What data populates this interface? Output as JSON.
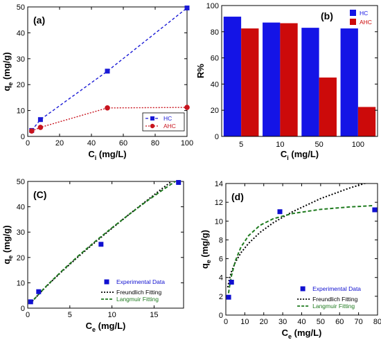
{
  "chart_data": [
    {
      "id": "a",
      "type": "line",
      "panel_label": "(a)",
      "xlabel": "C",
      "xlabel_sub": "i",
      "xlabel_unit": " (mg/L)",
      "ylabel": "q",
      "ylabel_sub": "e",
      "ylabel_unit": " (mg/g)",
      "xlim": [
        0,
        100
      ],
      "ylim": [
        0,
        50
      ],
      "xticks": [
        0,
        20,
        40,
        60,
        80,
        100
      ],
      "yticks": [
        0,
        10,
        20,
        30,
        40,
        50
      ],
      "legend_position": "bottom-right",
      "series": [
        {
          "name": "HC",
          "color": "#1a1ad6",
          "marker": "square",
          "line": "dashed",
          "x": [
            2.5,
            8,
            50,
            100
          ],
          "y": [
            2.3,
            6.5,
            25.2,
            49.6
          ]
        },
        {
          "name": "AHC",
          "color": "#c8141e",
          "marker": "circle",
          "line": "dotted",
          "x": [
            2.5,
            8,
            50,
            100
          ],
          "y": [
            2.1,
            3.5,
            11.0,
            11.2
          ]
        }
      ]
    },
    {
      "id": "b",
      "type": "bar",
      "panel_label": "(b)",
      "xlabel": "C",
      "xlabel_sub": "i",
      "xlabel_unit": " (mg/L)",
      "ylabel": "R%",
      "ylim": [
        0,
        100
      ],
      "yticks": [
        0,
        20,
        40,
        60,
        80,
        100
      ],
      "categories": [
        "5",
        "10",
        "50",
        "100"
      ],
      "legend_position": "top-right",
      "series": [
        {
          "name": "HC",
          "color": "#1414e6",
          "values": [
            91.5,
            87,
            83,
            82.5
          ]
        },
        {
          "name": "AHC",
          "color": "#cc0a0a",
          "values": [
            82.5,
            86.5,
            45,
            22.5
          ]
        }
      ]
    },
    {
      "id": "C",
      "type": "scatter",
      "panel_label": "(C)",
      "xlabel": "C",
      "xlabel_sub": "e",
      "xlabel_unit": " (mg/L)",
      "ylabel": "q",
      "ylabel_sub": "e",
      "ylabel_unit": " (mg/g)",
      "xlim": [
        0,
        18.5
      ],
      "ylim": [
        0,
        50
      ],
      "xticks": [
        0,
        5,
        10,
        15
      ],
      "yticks": [
        0,
        10,
        20,
        30,
        40,
        50
      ],
      "legend_position": "bottom-right",
      "experimental": {
        "name": "Experimental Data",
        "color": "#1010d0",
        "x": [
          0.35,
          1.3,
          8.7,
          17.9
        ],
        "y": [
          2.5,
          6.5,
          25.2,
          49.6
        ]
      },
      "fits": [
        {
          "name": "Freundlich Fitting",
          "color": "#000000",
          "style": "dotted",
          "x": [
            0.3,
            2,
            4,
            6,
            8,
            10,
            12,
            14,
            16,
            18
          ],
          "y": [
            1.9,
            7.9,
            14.3,
            20.3,
            26.0,
            31.5,
            36.9,
            42.1,
            47.3,
            52.3
          ]
        },
        {
          "name": "Langmuir Fitting",
          "color": "#1e7a1e",
          "style": "dashed",
          "x": [
            0.3,
            2,
            4,
            6,
            8,
            10,
            12,
            14,
            16,
            18
          ],
          "y": [
            1.8,
            8.0,
            14.5,
            20.6,
            26.3,
            31.7,
            36.9,
            41.9,
            46.6,
            51.1
          ]
        }
      ]
    },
    {
      "id": "d",
      "type": "scatter",
      "panel_label": "(d)",
      "xlabel": "C",
      "xlabel_sub": "e",
      "xlabel_unit": " (mg/L)",
      "ylabel": "q",
      "ylabel_sub": "e",
      "ylabel_unit": " (mg/g)",
      "xlim": [
        0,
        80
      ],
      "ylim": [
        0,
        14
      ],
      "xticks": [
        0,
        10,
        20,
        30,
        40,
        50,
        60,
        70,
        80
      ],
      "yticks": [
        0,
        2,
        4,
        6,
        8,
        10,
        12,
        14
      ],
      "legend_position": "bottom-right",
      "experimental": {
        "name": "Experimental Data",
        "color": "#1010d0",
        "x": [
          1.5,
          3,
          28.5,
          78.5
        ],
        "y": [
          1.9,
          3.5,
          11.0,
          11.2
        ]
      },
      "fits": [
        {
          "name": "Freundlich Fitting",
          "color": "#000000",
          "style": "dotted",
          "x": [
            1,
            2,
            3,
            5,
            8,
            12,
            18,
            25,
            35,
            50,
            65,
            78
          ],
          "y": [
            2.95,
            3.94,
            4.63,
            5.62,
            6.64,
            7.63,
            8.79,
            9.82,
            10.98,
            12.4,
            13.5,
            14.3
          ]
        },
        {
          "name": "Langmuir Fitting",
          "color": "#1e7a1e",
          "style": "dashed",
          "x": [
            1,
            2,
            3,
            5,
            8,
            12,
            18,
            25,
            35,
            50,
            65,
            78
          ],
          "y": [
            1.75,
            3.1,
            4.2,
            5.75,
            7.25,
            8.45,
            9.55,
            10.25,
            10.8,
            11.25,
            11.5,
            11.65
          ]
        }
      ]
    }
  ]
}
